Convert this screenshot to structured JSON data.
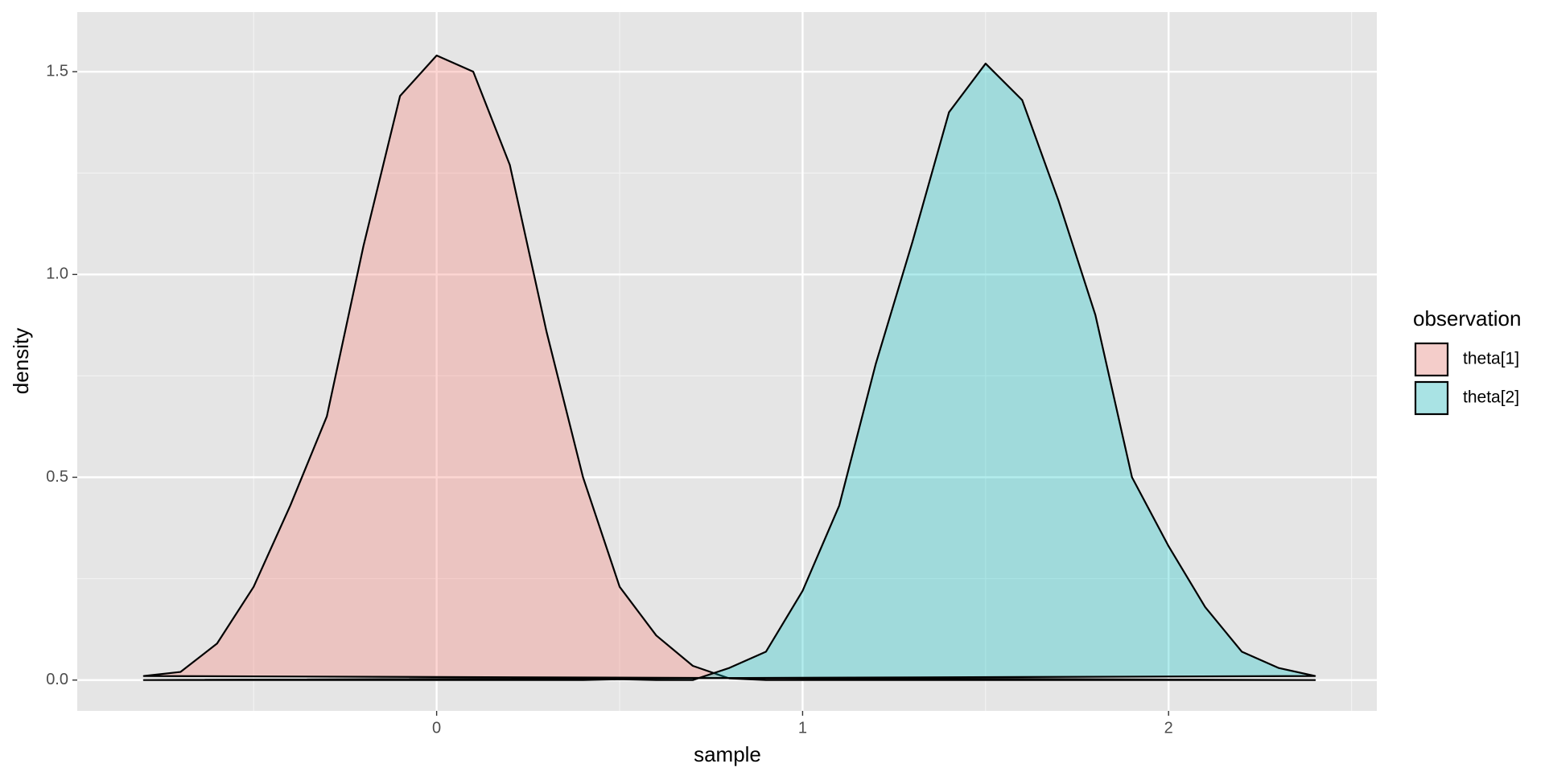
{
  "chart_data": {
    "type": "density",
    "x_label": "sample",
    "y_label": "density",
    "legend_title": "observation",
    "legend_position": "right",
    "x": [
      -0.8,
      -0.7,
      -0.6,
      -0.5,
      -0.4,
      -0.3,
      -0.2,
      -0.1,
      0,
      0.1,
      0.2,
      0.3,
      0.4,
      0.5,
      0.6,
      0.7,
      0.8,
      0.9,
      1.0,
      1.1,
      1.2,
      1.3,
      1.4,
      1.5,
      1.6,
      1.7,
      1.8,
      1.9,
      2.0,
      2.1,
      2.2,
      2.3,
      2.4
    ],
    "series": [
      {
        "name": "theta[1]",
        "color": "#F8766D",
        "values": [
          0.01,
          0.02,
          0.09,
          0.23,
          0.43,
          0.65,
          1.07,
          1.44,
          1.54,
          1.5,
          1.27,
          0.86,
          0.5,
          0.23,
          0.11,
          0.035,
          0.004,
          0,
          0,
          0,
          0,
          0,
          0,
          0,
          0,
          0,
          0,
          0,
          0,
          0,
          0,
          0,
          0
        ]
      },
      {
        "name": "theta[2]",
        "color": "#00BFC4",
        "values": [
          0,
          0,
          0,
          0,
          0,
          0,
          0,
          0,
          0,
          0,
          0,
          0,
          0,
          0.002,
          0,
          0,
          0.03,
          0.07,
          0.22,
          0.43,
          0.78,
          1.08,
          1.4,
          1.52,
          1.43,
          1.18,
          0.9,
          0.5,
          0.33,
          0.18,
          0.07,
          0.03,
          0.01
        ]
      }
    ],
    "xlim": [
      -0.982,
      2.569
    ],
    "xticks": [
      0,
      1,
      2
    ],
    "ylim": [
      -0.076,
      1.647
    ],
    "yticks": [
      {
        "value": 0,
        "label": "0.0"
      },
      0.5,
      {
        "value": 1,
        "label": "1.0"
      },
      1.5
    ],
    "grid": true,
    "fill_opacity": 0.3
  }
}
